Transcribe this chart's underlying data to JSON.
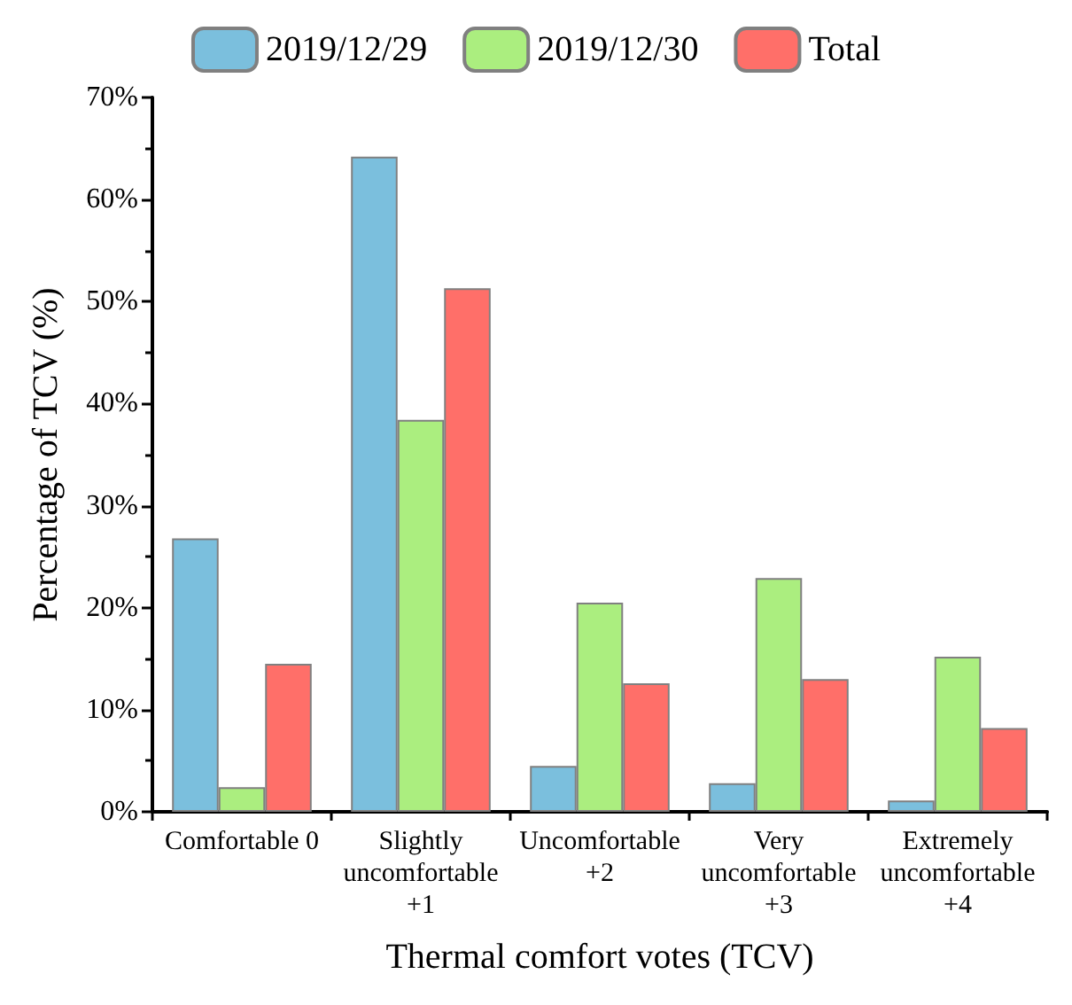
{
  "chart_data": {
    "type": "bar",
    "xlabel": "Thermal comfort votes (TCV)",
    "ylabel": "Percentage of TCV (%)",
    "categories": [
      "Comfortable 0",
      "Slightly\nuncomfortable\n+1",
      "Uncomfortable\n+2",
      "Very\nuncomfortable\n+3",
      "Extremely\nuncomfortable\n+4"
    ],
    "series": [
      {
        "name": "2019/12/29",
        "color": "#7bbfdd",
        "values": [
          26.8,
          64.2,
          4.5,
          2.8,
          1.1
        ]
      },
      {
        "name": "2019/12/30",
        "color": "#abee7f",
        "values": [
          2.4,
          38.4,
          20.5,
          22.9,
          15.2
        ]
      },
      {
        "name": "Total",
        "color": "#ff6f69",
        "values": [
          14.5,
          51.3,
          12.6,
          13.0,
          8.2
        ]
      }
    ],
    "ylim": [
      0,
      70
    ],
    "yticks": [
      {
        "value": 0,
        "label": "0%"
      },
      {
        "value": 10,
        "label": "10%"
      },
      {
        "value": 20,
        "label": "20%"
      },
      {
        "value": 30,
        "label": "30%"
      },
      {
        "value": 40,
        "label": "40%"
      },
      {
        "value": 50,
        "label": "50%"
      },
      {
        "value": 60,
        "label": "60%"
      },
      {
        "value": 70,
        "label": "70%"
      }
    ],
    "grid": false,
    "legend": "top"
  }
}
